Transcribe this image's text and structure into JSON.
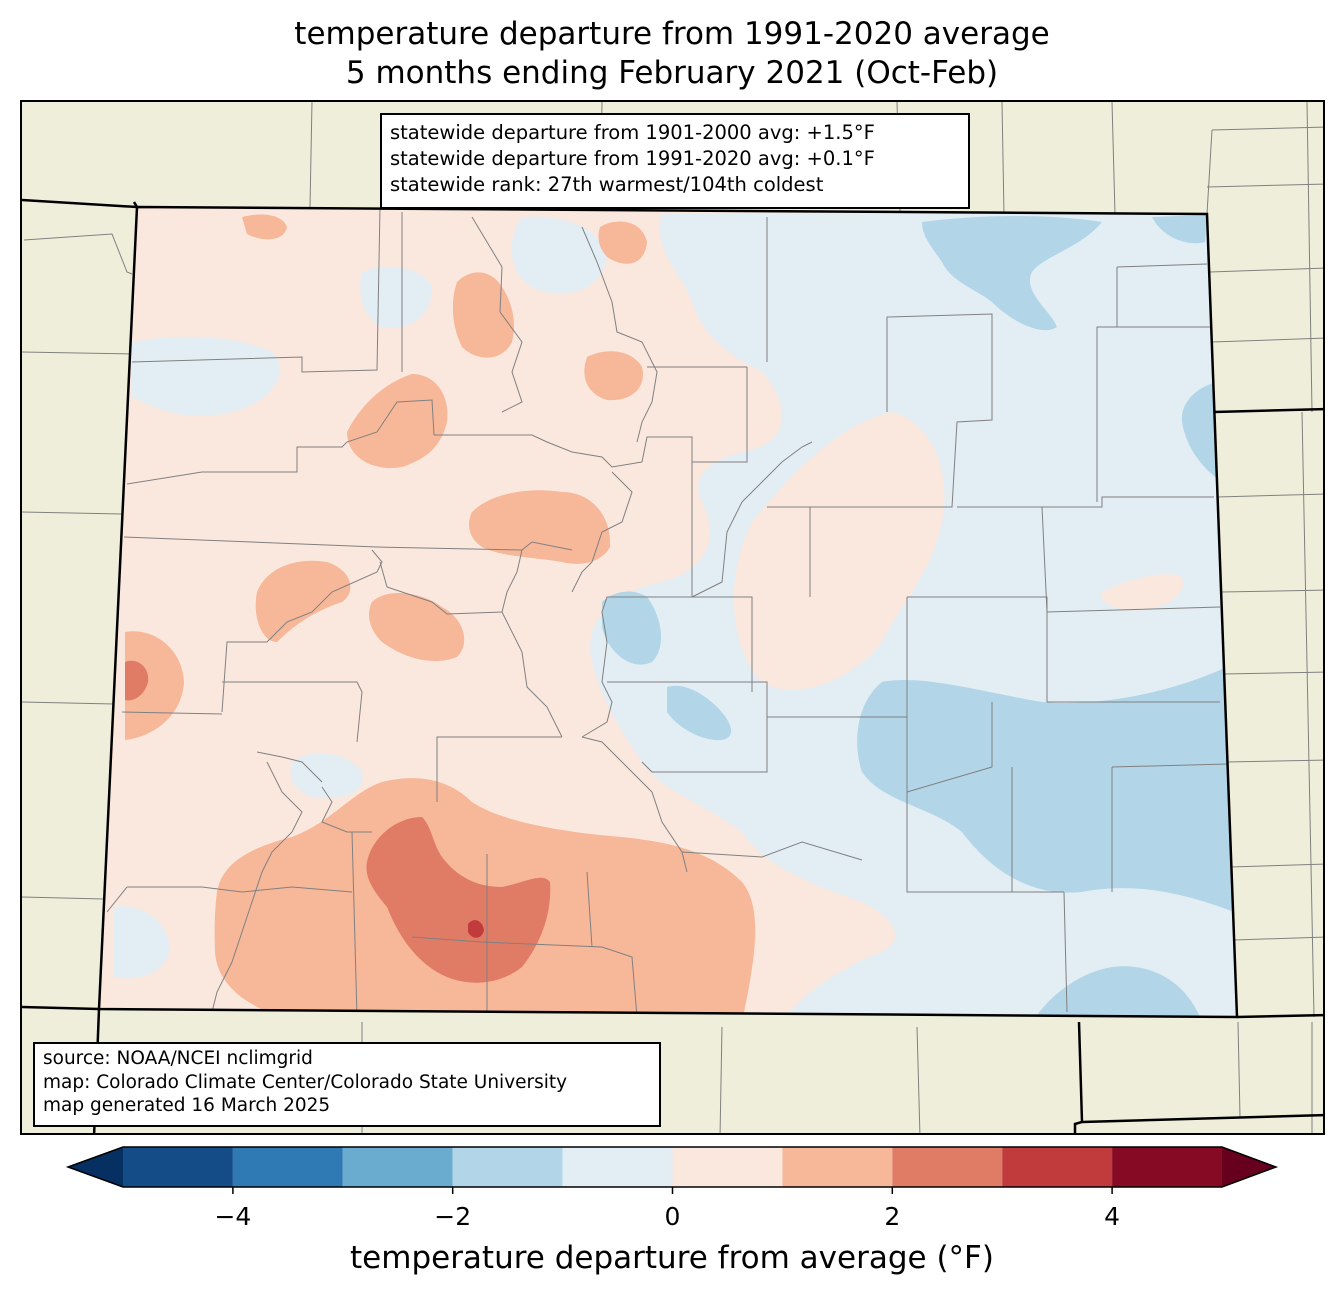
{
  "title": {
    "line1": "temperature departure from 1991-2020 average",
    "line2": "5 months ending February 2021 (Oct-Feb)"
  },
  "stats": {
    "line1": "statewide departure from 1901-2000 avg: +1.5°F",
    "line2": "statewide departure from 1991-2020 avg: +0.1°F",
    "line3": "statewide rank: 27th warmest/104th coldest"
  },
  "source": {
    "line1": "source: NOAA/NCEI nclimgrid",
    "line2": "map: Colorado Climate Center/Colorado State University",
    "line3": "map generated 16 March 2025"
  },
  "colorbar": {
    "label": "temperature departure from average (°F)",
    "ticks": [
      "−4",
      "−2",
      "0",
      "2",
      "4"
    ],
    "bin_edges": [
      -5,
      -4,
      -3,
      -2,
      -1,
      0,
      1,
      2,
      3,
      4,
      5
    ],
    "colors": [
      "#053061",
      "#144c87",
      "#2f79b5",
      "#6aacd0",
      "#b2d6e8",
      "#e3edf4",
      "#fae8de",
      "#f7b799",
      "#e07b65",
      "#c13b3c",
      "#870a24",
      "#67001f"
    ]
  },
  "map_colors": {
    "land_background": "#efeedb",
    "state_border": "#000000",
    "county_border": "#808080"
  }
}
